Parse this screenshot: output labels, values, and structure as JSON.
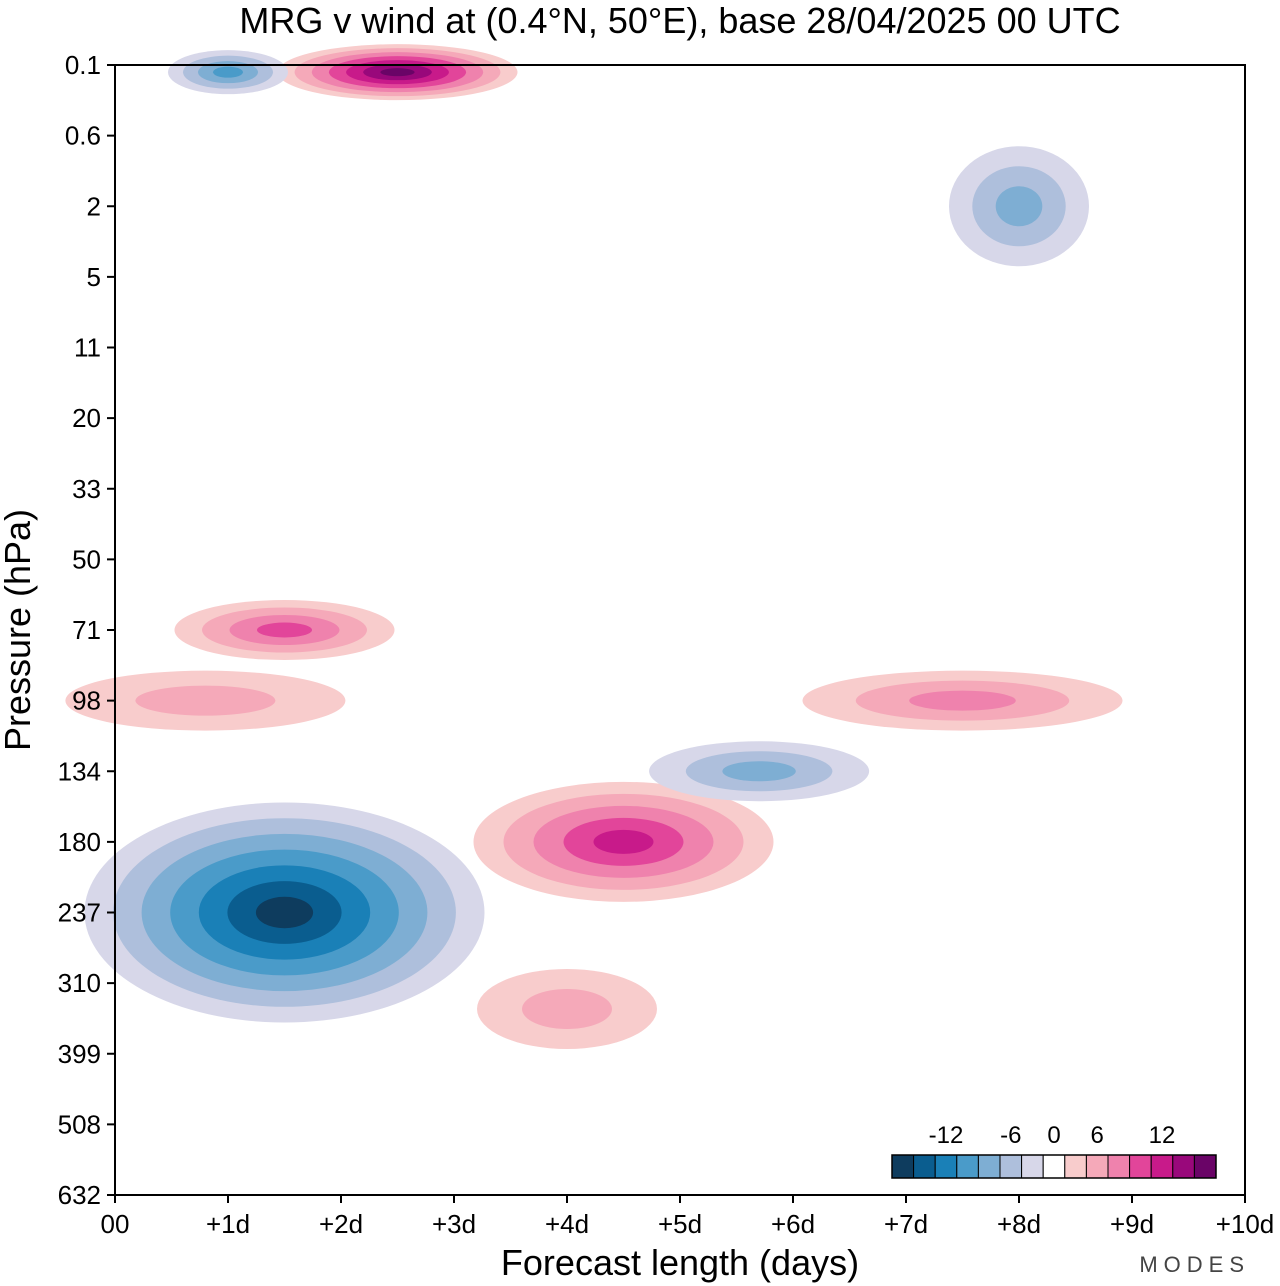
{
  "chart_data": {
    "type": "heatmap",
    "title": "MRG v wind at (0.4°N, 50°E),  base 28/04/2025  00 UTC",
    "xlabel": "Forecast length (days)",
    "ylabel": "Pressure (hPa)",
    "x_ticks": [
      "00",
      "+1d",
      "+2d",
      "+3d",
      "+4d",
      "+5d",
      "+6d",
      "+7d",
      "+8d",
      "+9d",
      "+10d"
    ],
    "x_range": [
      0,
      10
    ],
    "y_ticks": [
      "0.1",
      "0.6",
      "2",
      "5",
      "11",
      "20",
      "33",
      "50",
      "71",
      "98",
      "134",
      "180",
      "237",
      "310",
      "399",
      "508",
      "632"
    ],
    "y_scale": "log-pressure, top 0.1 hPa to bottom 632 hPa",
    "colorbar": {
      "tick_labels": [
        "-12",
        "-6",
        "0",
        "6",
        "12"
      ],
      "colors": [
        "#0e3c5e",
        "#0a5d8f",
        "#1a80b7",
        "#4a9bc9",
        "#7eaed3",
        "#aebfdc",
        "#d7d7e9",
        "#ffffff",
        "#f8cccc",
        "#f5a9b9",
        "#ef82ad",
        "#e2459a",
        "#c81a8a",
        "#99087b",
        "#6a0467"
      ]
    },
    "features": [
      {
        "sign": "negative",
        "center_day": 1.5,
        "center_hpa": 237,
        "peak": -13
      },
      {
        "sign": "positive",
        "center_day": 4.5,
        "center_hpa": 180,
        "peak": 9
      },
      {
        "sign": "negative",
        "center_day": 5.7,
        "center_hpa": 134,
        "peak": -5
      },
      {
        "sign": "positive",
        "center_day": 7.5,
        "center_hpa": 98,
        "peak": 5
      },
      {
        "sign": "positive",
        "center_day": 1.5,
        "center_hpa": 71,
        "peak": 7
      },
      {
        "sign": "positive",
        "center_day": 0.8,
        "center_hpa": 98,
        "peak": 4
      },
      {
        "sign": "positive",
        "center_day": 4.0,
        "center_hpa": 340,
        "peak": 4
      },
      {
        "sign": "positive",
        "center_day": 2.5,
        "center_hpa": 0.12,
        "peak": 14
      },
      {
        "sign": "negative",
        "center_day": 1.0,
        "center_hpa": 0.12,
        "peak": -8
      },
      {
        "sign": "negative",
        "center_day": 8.0,
        "center_hpa": 2,
        "peak": -5
      }
    ]
  },
  "watermark": "MODES"
}
